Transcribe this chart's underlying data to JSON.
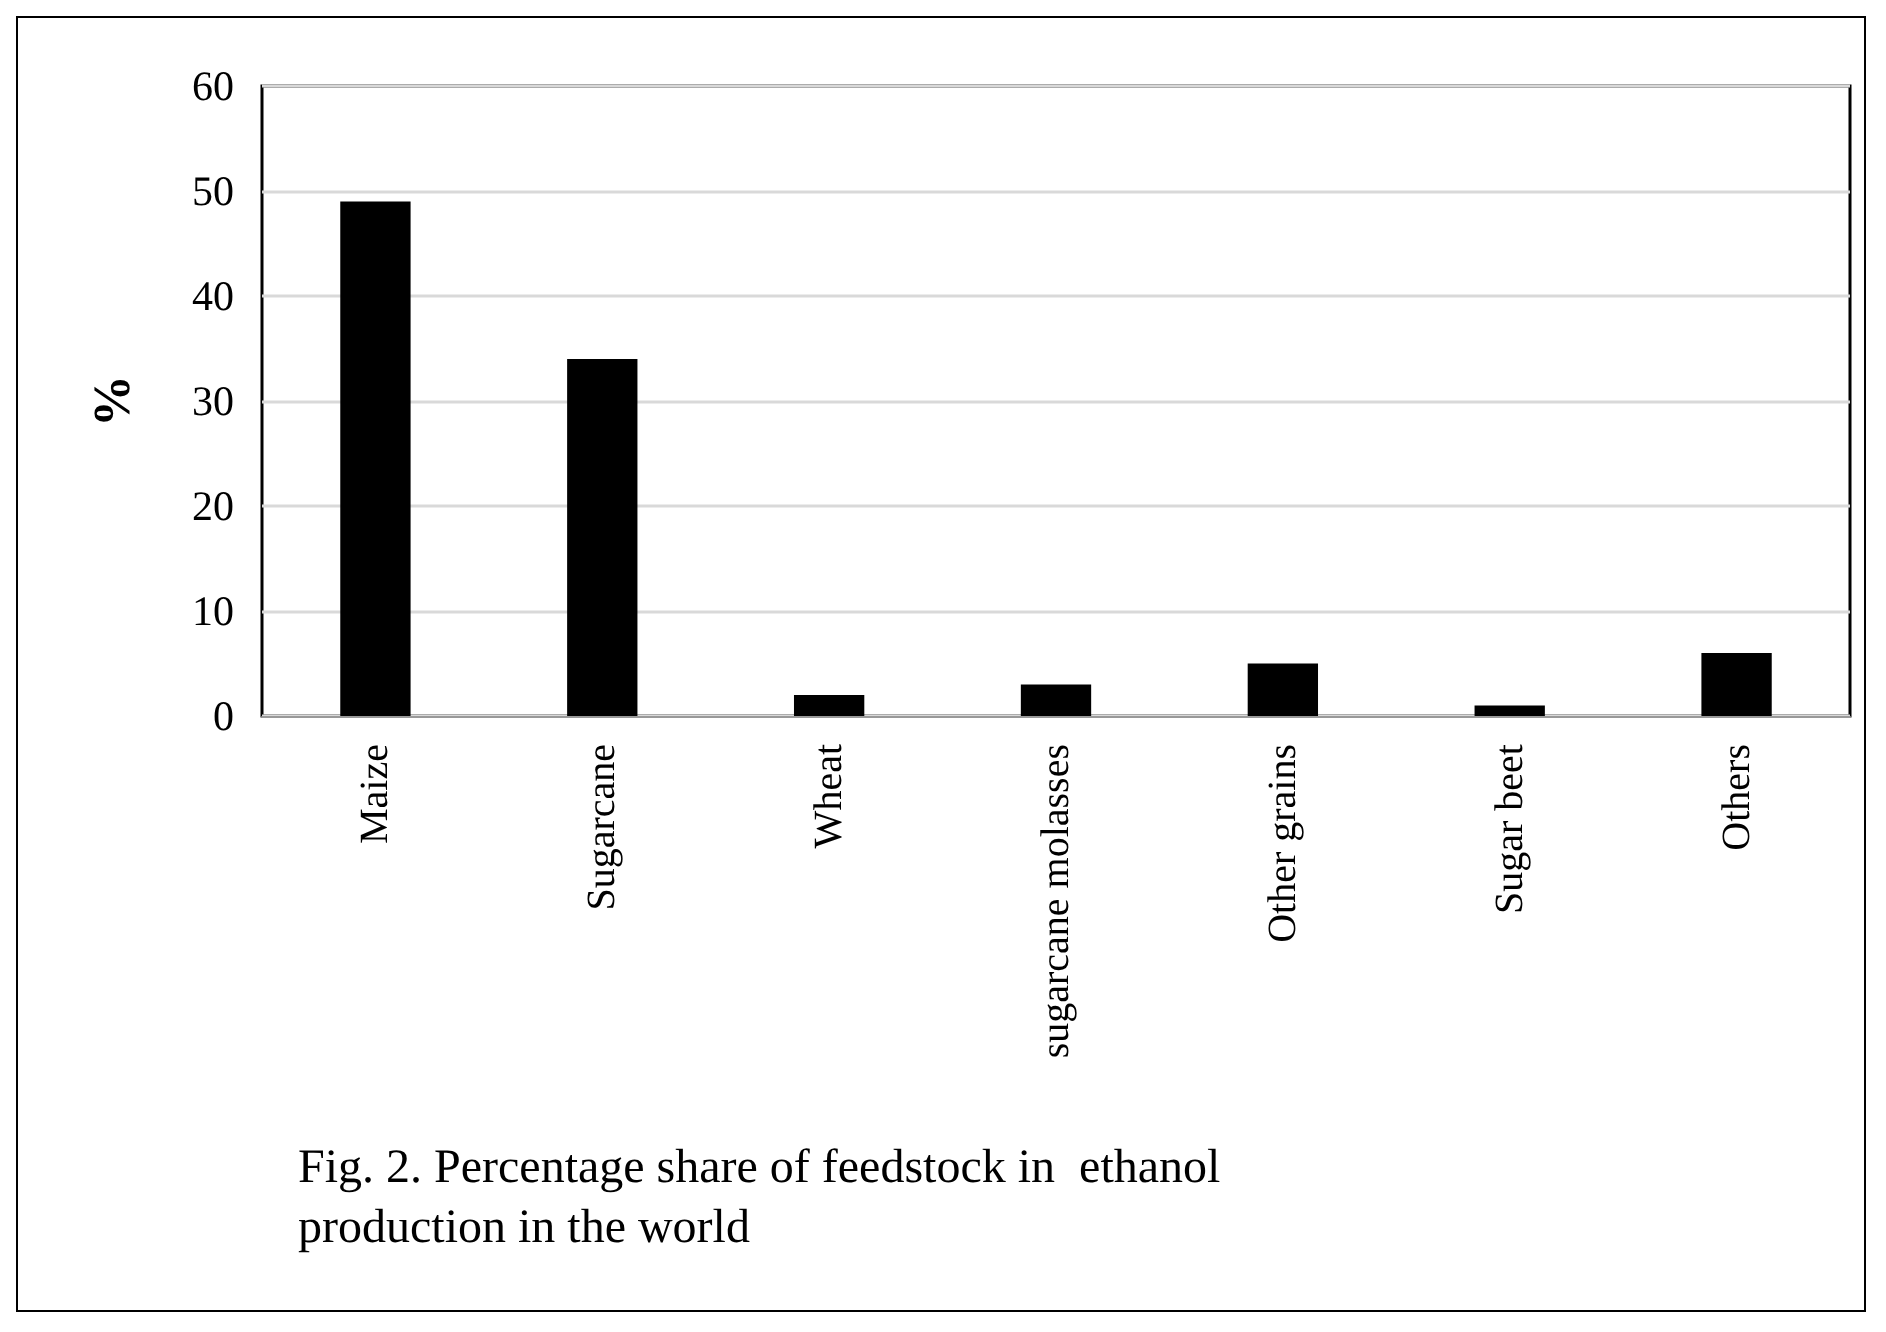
{
  "chart_data": {
    "type": "bar",
    "ylabel": "%",
    "categories": [
      "Maize",
      "Sugarcane",
      "Wheat",
      "sugarcane molasses",
      "Other grains",
      "Sugar beet",
      "Others"
    ],
    "values": [
      49,
      34,
      2,
      3,
      5,
      1,
      6
    ],
    "color": "#000000",
    "ylim": [
      0,
      60
    ],
    "yticks": [
      0,
      10,
      20,
      30,
      40,
      50,
      60
    ],
    "grid": "y",
    "annotations": [
      "Fig. 2. Percentage share of feedstock in  ethanol production in the world"
    ]
  }
}
